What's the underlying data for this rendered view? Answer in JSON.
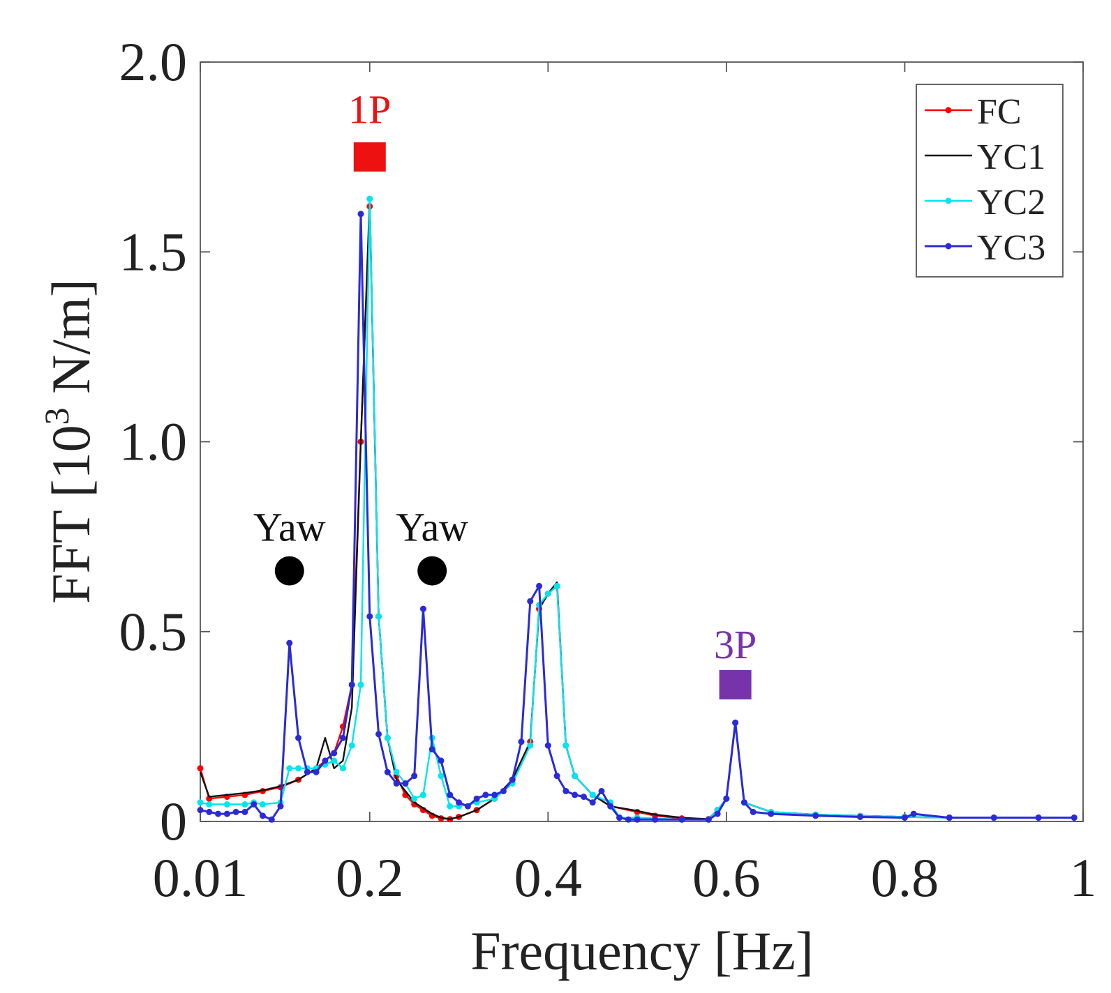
{
  "chart_data": {
    "type": "line",
    "xlabel": "Frequency [Hz]",
    "ylabel_main": "FFT [10",
    "ylabel_sup": "3",
    "ylabel_tail": " N/m]",
    "xlim": [
      0.01,
      1.0
    ],
    "ylim": [
      0,
      2.0
    ],
    "xticks": [
      0.01,
      0.2,
      0.4,
      0.6,
      0.8,
      1.0
    ],
    "xtick_labels": [
      "0.01",
      "0.2",
      "0.4",
      "0.6",
      "0.8",
      "1"
    ],
    "yticks": [
      0,
      0.5,
      1.0,
      1.5,
      2.0
    ],
    "ytick_labels": [
      "0",
      "0.5",
      "1.0",
      "1.5",
      "2.0"
    ],
    "grid": false,
    "legend_position": "top-right",
    "series": [
      {
        "name": "FC",
        "color": "#ff0000",
        "x": [
          0.01,
          0.02,
          0.04,
          0.06,
          0.08,
          0.1,
          0.12,
          0.14,
          0.16,
          0.17,
          0.18,
          0.19,
          0.2,
          0.21,
          0.22,
          0.23,
          0.24,
          0.25,
          0.26,
          0.27,
          0.28,
          0.29,
          0.3,
          0.32,
          0.34,
          0.36,
          0.38,
          0.39,
          0.4,
          0.41,
          0.42,
          0.43,
          0.45,
          0.47,
          0.5,
          0.52,
          0.55,
          0.58,
          0.59,
          0.6,
          0.61,
          0.62,
          0.65,
          0.7,
          0.75,
          0.8,
          0.85,
          0.9,
          0.95,
          0.99
        ],
        "y": [
          0.14,
          0.06,
          0.065,
          0.07,
          0.08,
          0.09,
          0.11,
          0.14,
          0.18,
          0.25,
          0.36,
          1.0,
          1.62,
          0.54,
          0.22,
          0.12,
          0.07,
          0.045,
          0.03,
          0.015,
          0.008,
          0.006,
          0.012,
          0.03,
          0.06,
          0.11,
          0.21,
          0.56,
          0.6,
          0.62,
          0.2,
          0.12,
          0.07,
          0.04,
          0.025,
          0.015,
          0.008,
          0.006,
          0.03,
          0.06,
          0.26,
          0.05,
          0.025,
          0.018,
          0.015,
          0.012,
          0.01,
          0.01,
          0.01,
          0.01
        ]
      },
      {
        "name": "YC1",
        "color": "#111111",
        "x": [
          0.01,
          0.02,
          0.04,
          0.06,
          0.08,
          0.1,
          0.12,
          0.14,
          0.15,
          0.16,
          0.17,
          0.18,
          0.19,
          0.2,
          0.21,
          0.22,
          0.23,
          0.24,
          0.25,
          0.26,
          0.27,
          0.28,
          0.29,
          0.3,
          0.32,
          0.34,
          0.36,
          0.38,
          0.39,
          0.4,
          0.41,
          0.42,
          0.43,
          0.45,
          0.47,
          0.5,
          0.52,
          0.55,
          0.58,
          0.59,
          0.6,
          0.61,
          0.62,
          0.65,
          0.7,
          0.75,
          0.8,
          0.85,
          0.9,
          0.95,
          0.99
        ],
        "y": [
          0.13,
          0.065,
          0.07,
          0.075,
          0.082,
          0.093,
          0.11,
          0.14,
          0.22,
          0.14,
          0.16,
          0.3,
          1.0,
          1.64,
          0.54,
          0.22,
          0.11,
          0.08,
          0.05,
          0.035,
          0.02,
          0.01,
          0.006,
          0.012,
          0.03,
          0.06,
          0.11,
          0.21,
          0.56,
          0.6,
          0.63,
          0.2,
          0.12,
          0.07,
          0.04,
          0.028,
          0.018,
          0.01,
          0.006,
          0.03,
          0.06,
          0.26,
          0.05,
          0.025,
          0.018,
          0.015,
          0.012,
          0.01,
          0.01,
          0.01,
          0.01
        ]
      },
      {
        "name": "YC2",
        "color": "#00e5ee",
        "x": [
          0.01,
          0.02,
          0.04,
          0.06,
          0.07,
          0.08,
          0.1,
          0.11,
          0.12,
          0.13,
          0.14,
          0.15,
          0.16,
          0.17,
          0.18,
          0.19,
          0.2,
          0.21,
          0.22,
          0.23,
          0.24,
          0.25,
          0.26,
          0.27,
          0.28,
          0.29,
          0.3,
          0.32,
          0.34,
          0.36,
          0.38,
          0.39,
          0.4,
          0.41,
          0.42,
          0.43,
          0.45,
          0.47,
          0.48,
          0.5,
          0.55,
          0.58,
          0.59,
          0.6,
          0.61,
          0.62,
          0.65,
          0.7,
          0.75,
          0.8,
          0.85,
          0.9,
          0.95,
          0.99
        ],
        "y": [
          0.05,
          0.045,
          0.045,
          0.045,
          0.05,
          0.045,
          0.05,
          0.14,
          0.14,
          0.14,
          0.14,
          0.15,
          0.16,
          0.14,
          0.2,
          0.36,
          1.64,
          0.54,
          0.22,
          0.13,
          0.1,
          0.06,
          0.07,
          0.22,
          0.12,
          0.04,
          0.04,
          0.05,
          0.06,
          0.1,
          0.2,
          0.57,
          0.6,
          0.62,
          0.2,
          0.12,
          0.07,
          0.05,
          0.01,
          0.01,
          0.005,
          0.005,
          0.03,
          0.06,
          0.26,
          0.05,
          0.025,
          0.018,
          0.015,
          0.012,
          0.01,
          0.01,
          0.01,
          0.01
        ]
      },
      {
        "name": "YC3",
        "color": "#2a2ad8",
        "x": [
          0.01,
          0.02,
          0.03,
          0.04,
          0.05,
          0.06,
          0.07,
          0.08,
          0.09,
          0.1,
          0.11,
          0.12,
          0.13,
          0.14,
          0.15,
          0.16,
          0.17,
          0.18,
          0.19,
          0.2,
          0.21,
          0.22,
          0.23,
          0.24,
          0.25,
          0.26,
          0.27,
          0.28,
          0.29,
          0.3,
          0.31,
          0.32,
          0.33,
          0.34,
          0.35,
          0.36,
          0.37,
          0.38,
          0.39,
          0.4,
          0.41,
          0.42,
          0.43,
          0.44,
          0.45,
          0.46,
          0.47,
          0.48,
          0.49,
          0.5,
          0.52,
          0.55,
          0.58,
          0.59,
          0.6,
          0.61,
          0.62,
          0.63,
          0.65,
          0.7,
          0.75,
          0.8,
          0.81,
          0.85,
          0.9,
          0.95,
          0.99
        ],
        "y": [
          0.03,
          0.025,
          0.02,
          0.02,
          0.025,
          0.025,
          0.045,
          0.015,
          0.005,
          0.04,
          0.47,
          0.22,
          0.13,
          0.13,
          0.16,
          0.18,
          0.22,
          0.36,
          1.6,
          0.54,
          0.23,
          0.13,
          0.1,
          0.1,
          0.12,
          0.56,
          0.19,
          0.16,
          0.07,
          0.05,
          0.04,
          0.06,
          0.07,
          0.07,
          0.08,
          0.11,
          0.21,
          0.58,
          0.62,
          0.2,
          0.12,
          0.08,
          0.07,
          0.065,
          0.05,
          0.08,
          0.04,
          0.01,
          0.005,
          0.005,
          0.005,
          0.005,
          0.005,
          0.02,
          0.06,
          0.26,
          0.05,
          0.025,
          0.02,
          0.015,
          0.012,
          0.01,
          0.02,
          0.01,
          0.01,
          0.01,
          0.01
        ]
      }
    ],
    "annotations": [
      {
        "text": "1P",
        "x": 0.2,
        "y": 1.88,
        "color": "#ee1111"
      },
      {
        "text": "Yaw",
        "x": 0.11,
        "y": 0.78,
        "color": "#111111"
      },
      {
        "text": "Yaw",
        "x": 0.27,
        "y": 0.78,
        "color": "#111111"
      },
      {
        "text": "3P",
        "x": 0.61,
        "y": 0.47,
        "color": "#7733aa"
      }
    ],
    "markers": [
      {
        "shape": "square",
        "x": 0.2,
        "y": 1.75,
        "color": "#ee1111"
      },
      {
        "shape": "circle",
        "x": 0.11,
        "y": 0.66,
        "color": "#000000"
      },
      {
        "shape": "circle",
        "x": 0.27,
        "y": 0.66,
        "color": "#000000"
      },
      {
        "shape": "square",
        "x": 0.61,
        "y": 0.36,
        "color": "#7733aa"
      }
    ]
  }
}
